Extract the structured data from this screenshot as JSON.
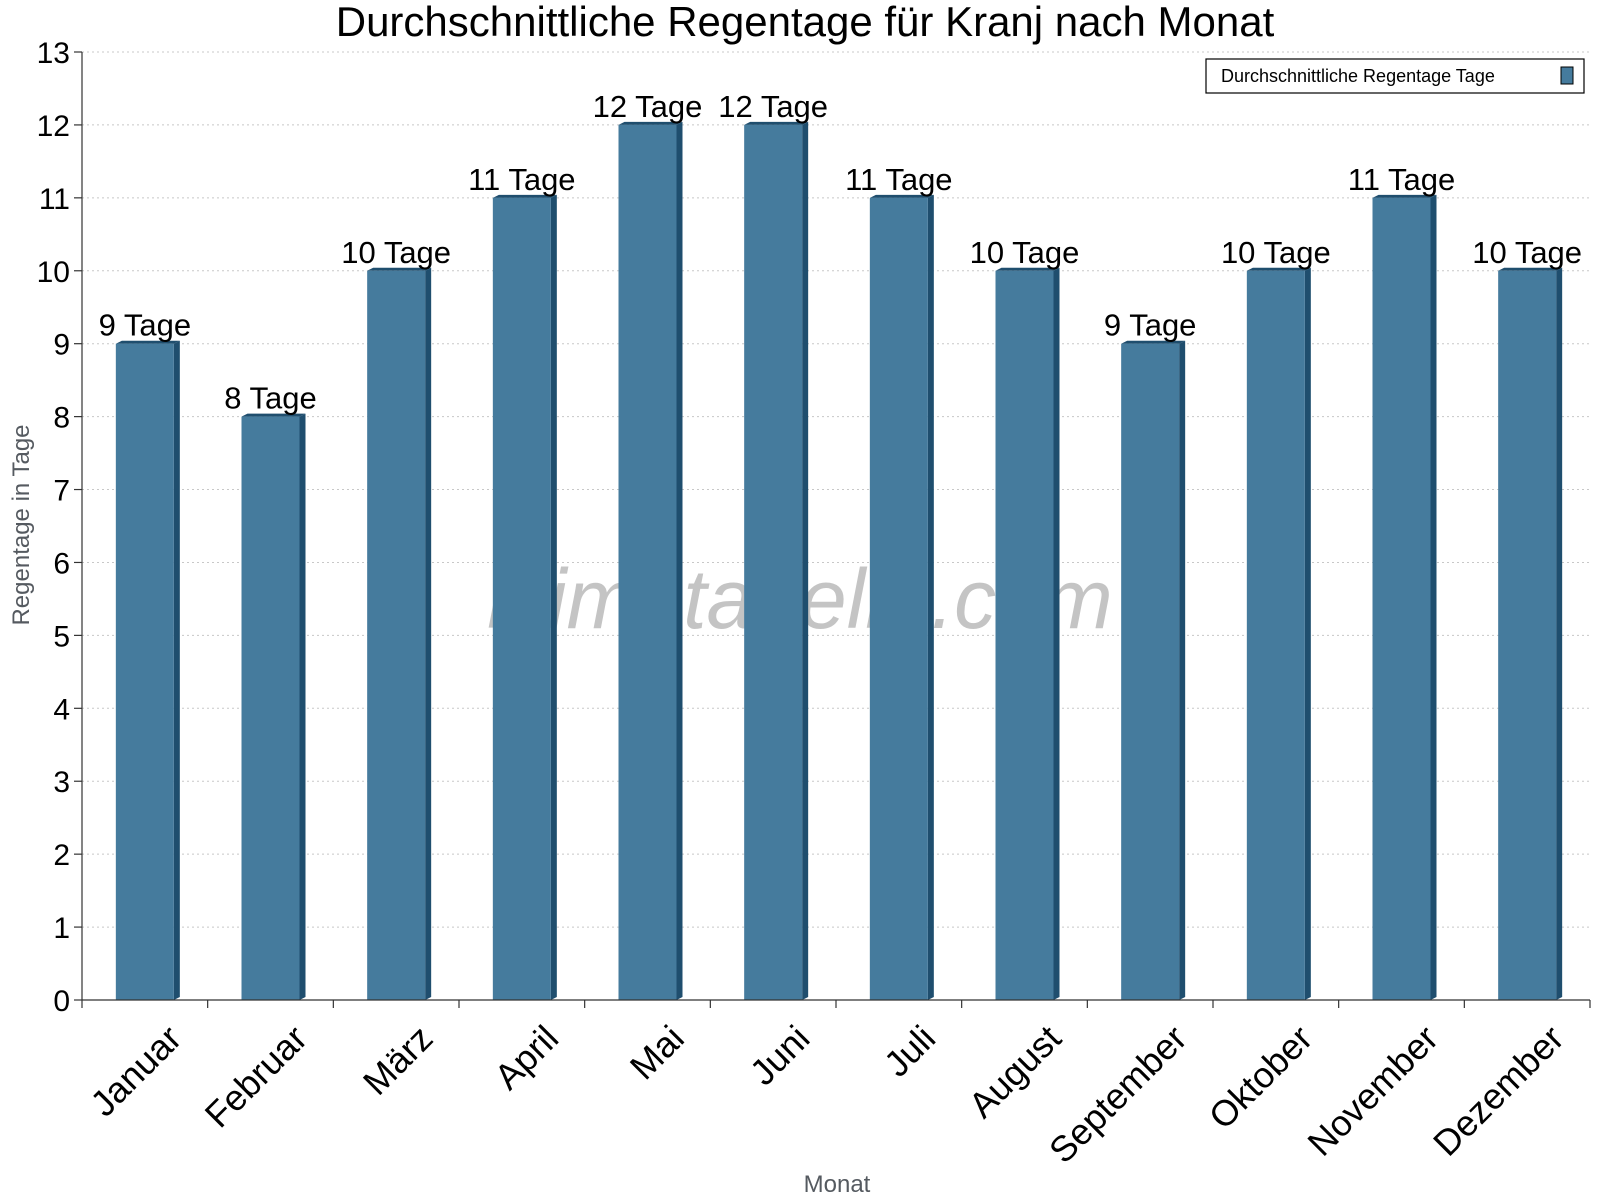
{
  "chart_data": {
    "type": "bar",
    "title": "Durchschnittliche Regentage für Kranj nach Monat",
    "xlabel": "Monat",
    "ylabel": "Regentage in Tage",
    "ylim": [
      0,
      13
    ],
    "yticks": [
      "0",
      "1",
      "2",
      "3",
      "4",
      "5",
      "6",
      "7",
      "8",
      "9",
      "10",
      "11",
      "12",
      "13"
    ],
    "grid": true,
    "legend_position": "top-right",
    "categories": [
      "Januar",
      "Februar",
      "März",
      "April",
      "Mai",
      "Juni",
      "Juli",
      "August",
      "September",
      "Oktober",
      "November",
      "Dezember"
    ],
    "series": [
      {
        "name": "Durchschnittliche Regentage Tage",
        "color": "#457b9d",
        "values": [
          9,
          8,
          10,
          11,
          12,
          12,
          11,
          10,
          9,
          10,
          11,
          10
        ],
        "labels": [
          "9 Tage",
          "8 Tage",
          "10 Tage",
          "11 Tage",
          "12 Tage",
          "12 Tage",
          "11 Tage",
          "10 Tage",
          "9 Tage",
          "10 Tage",
          "11 Tage",
          "10 Tage"
        ]
      }
    ]
  },
  "watermark": "klimatabelle.com",
  "colors": {
    "bar": "#457b9d",
    "bar_side": "#1f4e6e",
    "grid": "#c8c8c8",
    "axis": "#333333"
  }
}
